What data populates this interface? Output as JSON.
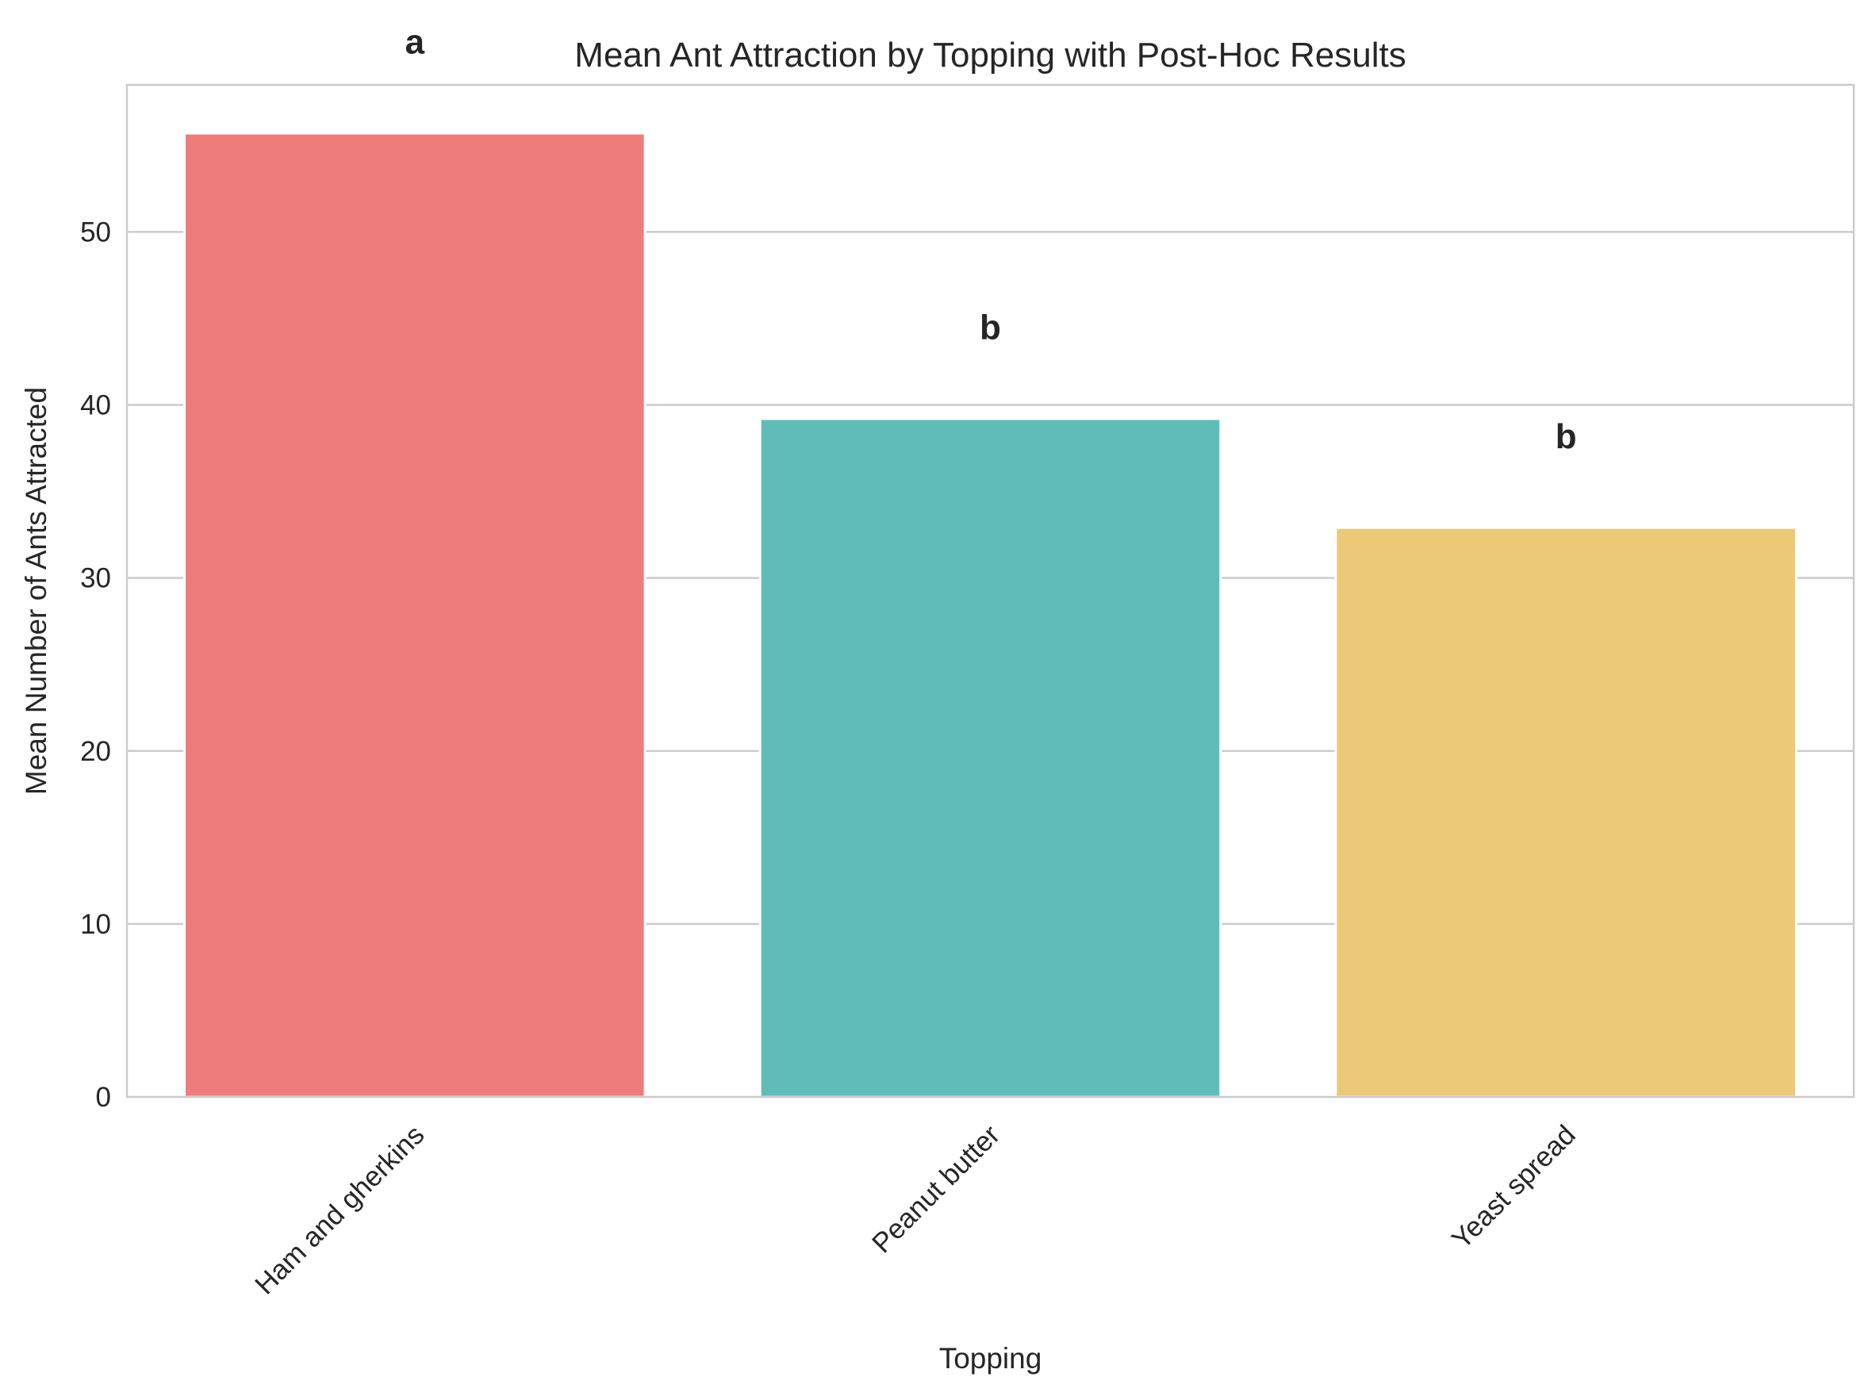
{
  "chart_data": {
    "type": "bar",
    "title": "Mean Ant Attraction by Topping with Post-Hoc Results",
    "xlabel": "Topping",
    "ylabel": "Mean Number of Ants Attracted",
    "categories": [
      "Ham and gherkins",
      "Peanut butter",
      "Yeast spread"
    ],
    "values": [
      55.7,
      39.2,
      32.9
    ],
    "significance_letters": [
      "a",
      "b",
      "b"
    ],
    "bar_colors": [
      "#ee7c7b",
      "#5fbdb9",
      "#ecc977"
    ],
    "ylim": [
      0,
      58.5
    ],
    "yticks": [
      0,
      10,
      20,
      30,
      40,
      50
    ],
    "grid": true,
    "grid_axis": "y"
  }
}
